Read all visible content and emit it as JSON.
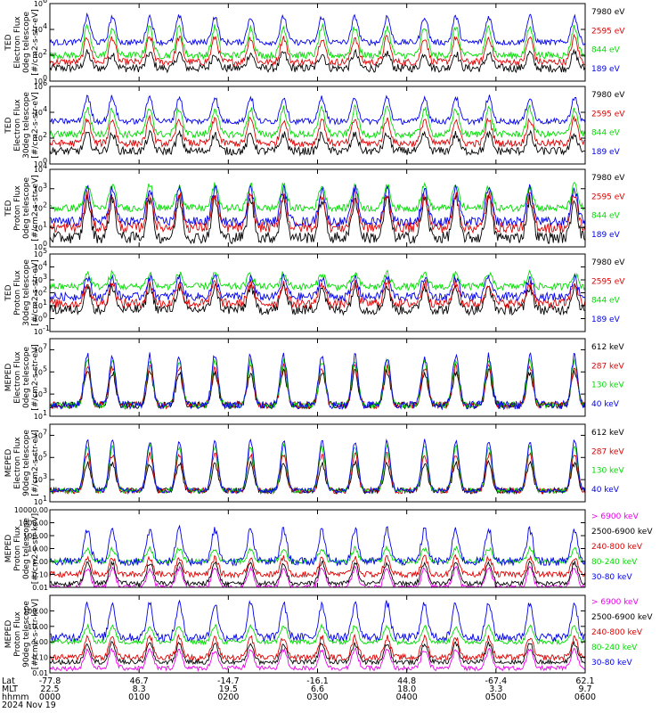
{
  "chart_data": {
    "type": "line",
    "x_axis": {
      "row_labels": [
        "Lat",
        "MLT",
        "hhmm",
        "2024 Nov 19"
      ],
      "ticks": [
        {
          "lat": "-77.8",
          "mlt": "22.5",
          "hhmm": "0000"
        },
        {
          "lat": "46.7",
          "mlt": "8.3",
          "hhmm": "0100"
        },
        {
          "lat": "-14.7",
          "mlt": "19.5",
          "hhmm": "0200"
        },
        {
          "lat": "-16.1",
          "mlt": "6.6",
          "hhmm": "0300"
        },
        {
          "lat": "44.8",
          "mlt": "18.0",
          "hhmm": "0400"
        },
        {
          "lat": "-67.4",
          "mlt": "3.3",
          "hhmm": "0500"
        },
        {
          "lat": "62.1",
          "mlt": "9.7",
          "hhmm": "0600"
        }
      ],
      "range_hours": [
        0,
        6
      ]
    },
    "panels": [
      {
        "ylabel": [
          "TED",
          "Electron Flux",
          "0deg telescope",
          "[#/cm2-s-str-eV]"
        ],
        "yscale": "log",
        "ylim": [
          1,
          1000000
        ],
        "yticks": [
          {
            "v": 1,
            "e": "0"
          },
          {
            "v": 100,
            "e": "2"
          },
          {
            "v": 10000,
            "e": "4"
          },
          {
            "v": 1000000,
            "e": "6"
          }
        ],
        "series": [
          {
            "name": "7980 eV",
            "color": "#000000",
            "peak": 150,
            "floor": 10,
            "noise": 0.35
          },
          {
            "name": "2595 eV",
            "color": "#e00000",
            "peak": 2500,
            "floor": 30,
            "noise": 0.3
          },
          {
            "name": "844 eV",
            "color": "#00dd00",
            "peak": 15000,
            "floor": 100,
            "noise": 0.3
          },
          {
            "name": "189 eV",
            "color": "#0000ee",
            "peak": 100000,
            "floor": 1000,
            "noise": 0.25
          }
        ]
      },
      {
        "ylabel": [
          "TED",
          "Electron Flux",
          "30deg telescope",
          "[#/cm2-s-str-eV]"
        ],
        "yscale": "log",
        "ylim": [
          1,
          1000000
        ],
        "yticks": [
          {
            "v": 1,
            "e": "0"
          },
          {
            "v": 100,
            "e": "2"
          },
          {
            "v": 10000,
            "e": "4"
          },
          {
            "v": 1000000,
            "e": "6"
          }
        ],
        "series": [
          {
            "name": "7980 eV",
            "color": "#000000",
            "peak": 200,
            "floor": 10,
            "noise": 0.35
          },
          {
            "name": "2595 eV",
            "color": "#e00000",
            "peak": 3000,
            "floor": 40,
            "noise": 0.3
          },
          {
            "name": "844 eV",
            "color": "#00dd00",
            "peak": 20000,
            "floor": 200,
            "noise": 0.3
          },
          {
            "name": "189 eV",
            "color": "#0000ee",
            "peak": 150000,
            "floor": 2000,
            "noise": 0.25
          }
        ]
      },
      {
        "ylabel": [
          "TED",
          "Proton Flux",
          "0deg telescope",
          "[#/cm2-s-str-eV]"
        ],
        "yscale": "log",
        "ylim": [
          1,
          10000
        ],
        "yticks": [
          {
            "v": 1,
            "e": "0"
          },
          {
            "v": 10,
            "e": "1"
          },
          {
            "v": 100,
            "e": "2"
          },
          {
            "v": 1000,
            "e": "3"
          },
          {
            "v": 10000,
            "e": "4"
          }
        ],
        "series": [
          {
            "name": "7980 eV",
            "color": "#000000",
            "peak": 300,
            "floor": 3,
            "noise": 0.5
          },
          {
            "name": "2595 eV",
            "color": "#e00000",
            "peak": 500,
            "floor": 10,
            "noise": 0.45
          },
          {
            "name": "844 eV",
            "color": "#00dd00",
            "peak": 1500,
            "floor": 100,
            "noise": 0.3
          },
          {
            "name": "189 eV",
            "color": "#0000ee",
            "peak": 1000,
            "floor": 20,
            "noise": 0.4
          }
        ]
      },
      {
        "ylabel": [
          "TED",
          "Proton Flux",
          "30deg telescope",
          "[#/cm2-s-str-eV]"
        ],
        "yscale": "log",
        "ylim": [
          0.1,
          100000
        ],
        "yticks": [
          {
            "v": 0.1,
            "e": "-1"
          },
          {
            "v": 1,
            "e": "0"
          },
          {
            "v": 10,
            "e": "1"
          },
          {
            "v": 100,
            "e": "2"
          },
          {
            "v": 1000,
            "e": "3"
          },
          {
            "v": 10000,
            "e": "4"
          },
          {
            "v": 100000,
            "e": "5"
          }
        ],
        "series": [
          {
            "name": "7980 eV",
            "color": "#000000",
            "peak": 300,
            "floor": 5,
            "noise": 0.45
          },
          {
            "name": "2595 eV",
            "color": "#e00000",
            "peak": 600,
            "floor": 15,
            "noise": 0.4
          },
          {
            "name": "844 eV",
            "color": "#00dd00",
            "peak": 3000,
            "floor": 300,
            "noise": 0.3
          },
          {
            "name": "189 eV",
            "color": "#0000ee",
            "peak": 1500,
            "floor": 50,
            "noise": 0.35
          }
        ]
      },
      {
        "ylabel": [
          "MEPED",
          "Electron Flux",
          "0deg telescope",
          "[#/cm2-s-str-eV]"
        ],
        "yscale": "log",
        "ylim": [
          10,
          100000000
        ],
        "yticks": [
          {
            "v": 10,
            "e": "1"
          },
          {
            "v": 1000,
            "e": "3"
          },
          {
            "v": 100000,
            "e": "5"
          },
          {
            "v": 10000000,
            "e": "7"
          }
        ],
        "series": [
          {
            "name": "612 keV",
            "color": "#000000",
            "peak": 100000,
            "floor": 100,
            "noise": 0.3
          },
          {
            "name": "287 keV",
            "color": "#e00000",
            "peak": 300000,
            "floor": 100,
            "noise": 0.3
          },
          {
            "name": "130 keV",
            "color": "#00dd00",
            "peak": 1000000,
            "floor": 100,
            "noise": 0.25
          },
          {
            "name": "40 keV",
            "color": "#0000ee",
            "peak": 3000000,
            "floor": 100,
            "noise": 0.35
          }
        ]
      },
      {
        "ylabel": [
          "MEPED",
          "Electron Flux",
          "90deg telescope",
          "[#/cm2-s-str-eV]"
        ],
        "yscale": "log",
        "ylim": [
          10,
          100000000
        ],
        "yticks": [
          {
            "v": 10,
            "e": "1"
          },
          {
            "v": 1000,
            "e": "3"
          },
          {
            "v": 100000,
            "e": "5"
          },
          {
            "v": 10000000,
            "e": "7"
          }
        ],
        "series": [
          {
            "name": "612 keV",
            "color": "#000000",
            "peak": 30000,
            "floor": 100,
            "noise": 0.25
          },
          {
            "name": "287 keV",
            "color": "#e00000",
            "peak": 200000,
            "floor": 100,
            "noise": 0.25
          },
          {
            "name": "130 keV",
            "color": "#00dd00",
            "peak": 1000000,
            "floor": 100,
            "noise": 0.2
          },
          {
            "name": "40 keV",
            "color": "#0000ee",
            "peak": 3000000,
            "floor": 100,
            "noise": 0.2
          }
        ]
      },
      {
        "ylabel": [
          "MEPED",
          "Proton Flux",
          "0deg telescope",
          "[#/cm2-s-str-keV]"
        ],
        "yscale": "log",
        "ylim": [
          0.01,
          10000
        ],
        "yticks": [
          {
            "v": 0.01,
            "t": "0.01"
          },
          {
            "v": 0.1,
            "t": "0.10"
          },
          {
            "v": 1,
            "t": "1.00"
          },
          {
            "v": 10,
            "t": "10.00"
          },
          {
            "v": 100,
            "t": "100.00"
          },
          {
            "v": 1000,
            "t": "1000.00"
          },
          {
            "v": 10000,
            "t": "10000.00"
          }
        ],
        "series": [
          {
            "name": "> 6900 keV",
            "color": "#ee00ee",
            "peak": 0.3,
            "floor": 0.01,
            "noise": 0.2
          },
          {
            "name": "2500-6900 keV",
            "color": "#000000",
            "peak": 0.8,
            "floor": 0.02,
            "noise": 0.2
          },
          {
            "name": "240-800 keV",
            "color": "#e00000",
            "peak": 2,
            "floor": 0.1,
            "noise": 0.25
          },
          {
            "name": "80-240 keV",
            "color": "#00dd00",
            "peak": 10,
            "floor": 1,
            "noise": 0.2
          },
          {
            "name": "30-80 keV",
            "color": "#0000ee",
            "peak": 300,
            "floor": 1,
            "noise": 0.35
          }
        ]
      },
      {
        "ylabel": [
          "MEPED",
          "Proton Flux",
          "90deg telescope",
          "[#/cm2-s-str-keV]"
        ],
        "yscale": "log",
        "ylim": [
          0.01,
          1000
        ],
        "yticks": [
          {
            "v": 0.01,
            "t": "0.01"
          },
          {
            "v": 0.1,
            "t": "0.10"
          },
          {
            "v": 1,
            "t": "1.00"
          },
          {
            "v": 10,
            "t": "10.00"
          },
          {
            "v": 100,
            "t": "100.00"
          }
        ],
        "series": [
          {
            "name": "> 6900 keV",
            "color": "#ee00ee",
            "peak": 0.3,
            "floor": 0.02,
            "noise": 0.2
          },
          {
            "name": "2500-6900 keV",
            "color": "#000000",
            "peak": 0.8,
            "floor": 0.05,
            "noise": 0.2
          },
          {
            "name": "240-800 keV",
            "color": "#e00000",
            "peak": 2,
            "floor": 0.1,
            "noise": 0.25
          },
          {
            "name": "80-240 keV",
            "color": "#00dd00",
            "peak": 10,
            "floor": 1,
            "noise": 0.2
          },
          {
            "name": "30-80 keV",
            "color": "#0000ee",
            "peak": 300,
            "floor": 2,
            "noise": 0.35
          }
        ]
      }
    ]
  }
}
